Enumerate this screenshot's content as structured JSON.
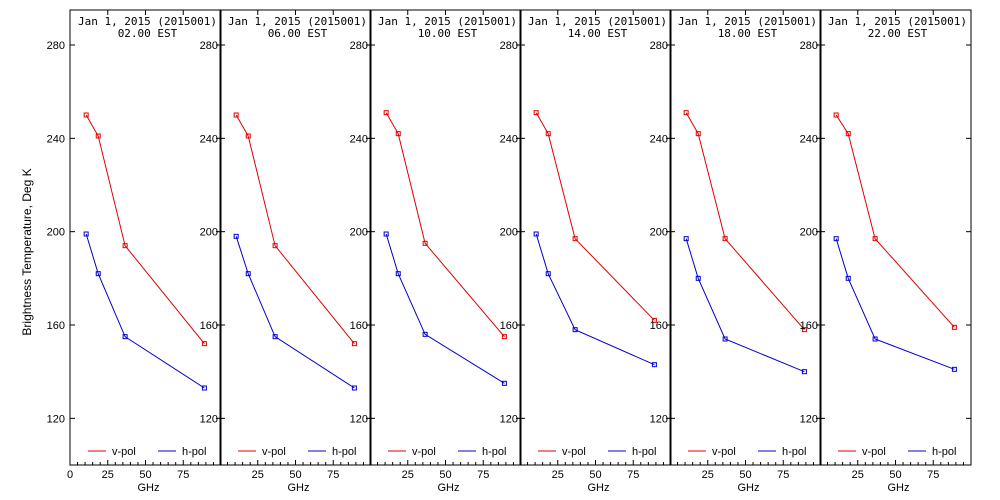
{
  "chart_data": {
    "type": "line",
    "ylabel": "Brightness Temperature, Deg K",
    "xlabel": "GHz",
    "xlim": [
      0,
      100
    ],
    "ylim": [
      100,
      295
    ],
    "x_ticks": [
      0,
      25,
      50,
      75
    ],
    "x_tick_labels": [
      "0",
      "25",
      "50",
      "75"
    ],
    "y_ticks": [
      120,
      160,
      200,
      240,
      280
    ],
    "y_tick_labels": [
      "120",
      "160",
      "200",
      "240",
      "280"
    ],
    "legend": {
      "placement": "bottom",
      "entries": [
        "v-pol",
        "h-pol"
      ]
    },
    "colors": {
      "v-pol": "#e00000",
      "h-pol": "#0000d0"
    },
    "x": [
      10.7,
      18.7,
      36.5,
      89.0
    ],
    "panels": [
      {
        "title": "Jan  1, 2015 (2015001)",
        "subtitle": "02.00 EST",
        "series": [
          {
            "name": "v-pol",
            "values": [
              250,
              241,
              194,
              152
            ]
          },
          {
            "name": "h-pol",
            "values": [
              199,
              182,
              155,
              133
            ]
          }
        ]
      },
      {
        "title": "Jan  1, 2015 (2015001)",
        "subtitle": "06.00 EST",
        "series": [
          {
            "name": "v-pol",
            "values": [
              250,
              241,
              194,
              152
            ]
          },
          {
            "name": "h-pol",
            "values": [
              198,
              182,
              155,
              133
            ]
          }
        ]
      },
      {
        "title": "Jan  1, 2015 (2015001)",
        "subtitle": "10.00 EST",
        "series": [
          {
            "name": "v-pol",
            "values": [
              251,
              242,
              195,
              155
            ]
          },
          {
            "name": "h-pol",
            "values": [
              199,
              182,
              156,
              135
            ]
          }
        ]
      },
      {
        "title": "Jan  1, 2015 (2015001)",
        "subtitle": "14.00 EST",
        "series": [
          {
            "name": "v-pol",
            "values": [
              251,
              242,
              197,
              162
            ]
          },
          {
            "name": "h-pol",
            "values": [
              199,
              182,
              158,
              143
            ]
          }
        ]
      },
      {
        "title": "Jan  1, 2015 (2015001)",
        "subtitle": "18.00 EST",
        "series": [
          {
            "name": "v-pol",
            "values": [
              251,
              242,
              197,
              158
            ]
          },
          {
            "name": "h-pol",
            "values": [
              197,
              180,
              154,
              140
            ]
          }
        ]
      },
      {
        "title": "Jan  1, 2015 (2015001)",
        "subtitle": "22.00 EST",
        "series": [
          {
            "name": "v-pol",
            "values": [
              250,
              242,
              197,
              159
            ]
          },
          {
            "name": "h-pol",
            "values": [
              197,
              180,
              154,
              141
            ]
          }
        ]
      }
    ]
  }
}
